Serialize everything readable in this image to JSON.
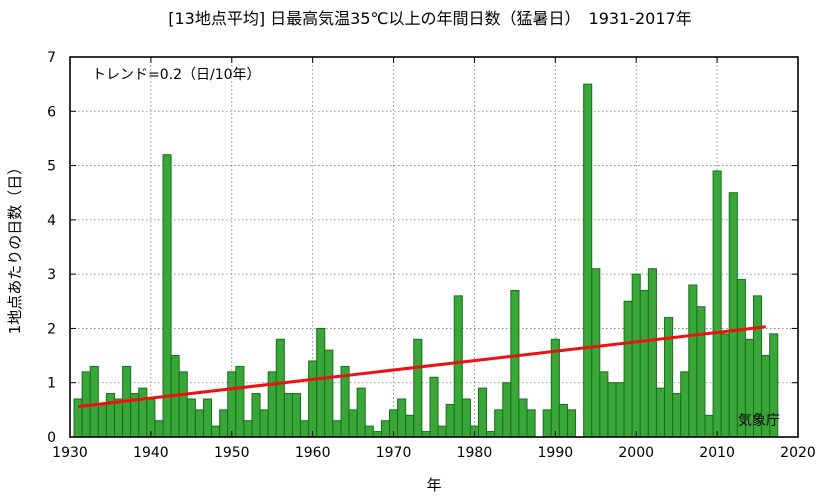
{
  "chart_data": {
    "type": "bar",
    "title": "[13地点平均] 日最高気温35℃以上の年間日数（猛暑日）　1931-2017年",
    "xlabel": "年",
    "ylabel": "1地点あたりの日数（日）",
    "trend_label": "トレンド=0.2（日/10年）",
    "source_label": "気象庁",
    "xlim": [
      1930,
      2020
    ],
    "ylim": [
      0,
      7
    ],
    "x_ticks": [
      1930,
      1940,
      1950,
      1960,
      1970,
      1980,
      1990,
      2000,
      2010,
      2020
    ],
    "y_ticks": [
      0,
      1,
      2,
      3,
      4,
      5,
      6,
      7
    ],
    "grid": true,
    "x": [
      1931,
      1932,
      1933,
      1934,
      1935,
      1936,
      1937,
      1938,
      1939,
      1940,
      1941,
      1942,
      1943,
      1944,
      1945,
      1946,
      1947,
      1948,
      1949,
      1950,
      1951,
      1952,
      1953,
      1954,
      1955,
      1956,
      1957,
      1958,
      1959,
      1960,
      1961,
      1962,
      1963,
      1964,
      1965,
      1966,
      1967,
      1968,
      1969,
      1970,
      1971,
      1972,
      1973,
      1974,
      1975,
      1976,
      1977,
      1978,
      1979,
      1980,
      1981,
      1982,
      1983,
      1984,
      1985,
      1986,
      1987,
      1988,
      1989,
      1990,
      1991,
      1992,
      1993,
      1994,
      1995,
      1996,
      1997,
      1998,
      1999,
      2000,
      2001,
      2002,
      2003,
      2004,
      2005,
      2006,
      2007,
      2008,
      2009,
      2010,
      2011,
      2012,
      2013,
      2014,
      2015,
      2016,
      2017
    ],
    "values": [
      0.7,
      1.2,
      1.3,
      0.6,
      0.8,
      0.7,
      1.3,
      0.8,
      0.9,
      0.7,
      0.3,
      5.2,
      1.5,
      1.2,
      0.7,
      0.5,
      0.7,
      0.2,
      0.5,
      1.2,
      1.3,
      0.3,
      0.8,
      0.5,
      1.2,
      1.8,
      0.8,
      0.8,
      0.3,
      1.4,
      2.0,
      1.6,
      0.3,
      1.3,
      0.5,
      0.9,
      0.2,
      0.1,
      0.3,
      0.5,
      0.7,
      0.4,
      1.8,
      0.1,
      1.1,
      0.2,
      0.6,
      2.6,
      0.7,
      0.2,
      0.9,
      0.1,
      0.5,
      1.0,
      2.7,
      0.7,
      0.5,
      0.0,
      0.5,
      1.8,
      0.6,
      0.5,
      0.0,
      6.5,
      3.1,
      1.2,
      1.0,
      1.0,
      2.5,
      3.0,
      2.7,
      3.1,
      0.9,
      2.2,
      0.8,
      1.2,
      2.8,
      2.4,
      0.4,
      4.9,
      1.9,
      4.5,
      2.9,
      1.8,
      2.6,
      1.5,
      1.9
    ],
    "trend": {
      "x": [
        1931,
        2016
      ],
      "y": [
        0.56,
        2.03
      ]
    },
    "colors": {
      "bar_fill": "#3aa63a",
      "bar_stroke": "#137313",
      "trend": "#ee1111",
      "grid": "#777777"
    }
  }
}
